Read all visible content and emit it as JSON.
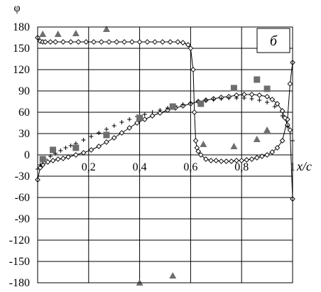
{
  "chart_data": {
    "type": "scatter",
    "title": "",
    "panel_label": "б",
    "ylabel": "φ",
    "xlabel": "x/c",
    "xlim": [
      0,
      1
    ],
    "ylim": [
      -180,
      180
    ],
    "grid": true,
    "x_ticks": [
      {
        "value": 0.2,
        "label": "0,2"
      },
      {
        "value": 0.4,
        "label": "0,4"
      },
      {
        "value": 0.6,
        "label": "0,6"
      },
      {
        "value": 0.8,
        "label": "0,8"
      },
      {
        "value": 1.0,
        "label": "1"
      }
    ],
    "y_ticks": [
      180,
      150,
      120,
      90,
      60,
      30,
      0,
      -30,
      -60,
      -90,
      -120,
      -150,
      -180
    ],
    "series": [
      {
        "marker": "diamond-line",
        "color": "#000000",
        "x": [
          0,
          0.01,
          0.02,
          0.03,
          0.05,
          0.07,
          0.1,
          0.13,
          0.16,
          0.19,
          0.22,
          0.25,
          0.28,
          0.31,
          0.34,
          0.37,
          0.4,
          0.43,
          0.46,
          0.49,
          0.52,
          0.55,
          0.57,
          0.59,
          0.6,
          0.61,
          0.615,
          0.62,
          0.625,
          0.63,
          0.64,
          0.66,
          0.68,
          0.7,
          0.72,
          0.74,
          0.76,
          0.78,
          0.8,
          0.82,
          0.84,
          0.86,
          0.88,
          0.9,
          0.92,
          0.94,
          0.96,
          0.98,
          0.99,
          1.0
        ],
        "y": [
          165,
          160,
          159,
          159,
          159,
          159,
          159,
          159,
          159,
          159,
          159,
          159,
          159,
          159,
          159,
          159,
          159,
          159,
          159,
          159,
          159,
          159,
          158,
          155,
          150,
          120,
          60,
          20,
          10,
          5,
          0,
          -6,
          -8,
          -8,
          -9,
          -9,
          -9,
          -8,
          -8,
          -7,
          -6,
          -4,
          -2,
          0,
          4,
          10,
          20,
          50,
          100,
          130
        ]
      },
      {
        "marker": "diamond-line",
        "color": "#000000",
        "x": [
          0,
          0.01,
          0.02,
          0.04,
          0.06,
          0.08,
          0.1,
          0.12,
          0.15,
          0.18,
          0.21,
          0.24,
          0.27,
          0.3,
          0.33,
          0.36,
          0.39,
          0.42,
          0.45,
          0.48,
          0.51,
          0.54,
          0.57,
          0.6,
          0.63,
          0.66,
          0.69,
          0.72,
          0.75,
          0.78,
          0.81,
          0.84,
          0.87,
          0.9,
          0.92,
          0.94,
          0.96,
          0.97,
          0.98,
          0.99,
          1.0
        ],
        "y": [
          -35,
          -18,
          -14,
          -10,
          -8,
          -6,
          -5,
          -3,
          0,
          3,
          7,
          12,
          18,
          24,
          31,
          38,
          45,
          50,
          55,
          59,
          63,
          66,
          69,
          72,
          75,
          77,
          79,
          81,
          82,
          84,
          85,
          85,
          84,
          82,
          78,
          72,
          62,
          52,
          42,
          35,
          -62
        ]
      },
      {
        "marker": "plus",
        "color": "#000000",
        "x": [
          0,
          0.01,
          0.02,
          0.03,
          0.05,
          0.07,
          0.09,
          0.11,
          0.13,
          0.15,
          0.18,
          0.21,
          0.24,
          0.27,
          0.3,
          0.33,
          0.36,
          0.39,
          0.42,
          0.45,
          0.48,
          0.51,
          0.54,
          0.57,
          0.6,
          0.63,
          0.66,
          0.69,
          0.72,
          0.75,
          0.78,
          0.81,
          0.84,
          0.87,
          0.9,
          0.93,
          0.96,
          0.98,
          1.0
        ],
        "y": [
          -20,
          -14,
          -10,
          -6,
          -2,
          2,
          6,
          10,
          13,
          16,
          21,
          26,
          31,
          36,
          41,
          46,
          50,
          54,
          57,
          60,
          63,
          66,
          69,
          71,
          73,
          75,
          77,
          78,
          79,
          80,
          80,
          80,
          79,
          77,
          74,
          68,
          55,
          40,
          20
        ]
      },
      {
        "marker": "triangle",
        "color": "#6e6e6e",
        "x": [
          0.02,
          0.08,
          0.15,
          0.27,
          0.4,
          0.53,
          0.65,
          0.77,
          0.86,
          0.9
        ],
        "y": [
          170,
          170,
          171,
          177,
          -180,
          -170,
          15,
          12,
          22,
          35
        ]
      },
      {
        "marker": "square",
        "color": "#6e6e6e",
        "x": [
          0.02,
          0.06,
          0.15,
          0.27,
          0.4,
          0.53,
          0.64,
          0.77,
          0.86,
          0.9
        ],
        "y": [
          -6,
          7,
          10,
          28,
          52,
          68,
          72,
          94,
          106,
          93
        ]
      }
    ]
  }
}
